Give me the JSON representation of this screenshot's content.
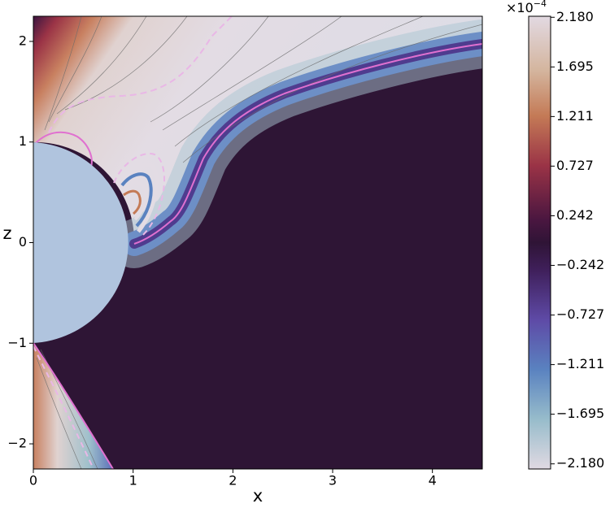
{
  "chart_data": {
    "type": "contour",
    "x_label": "x",
    "y_label": "z",
    "xlim": [
      0,
      4.5
    ],
    "ylim": [
      -2.25,
      2.25
    ],
    "xticks": [
      0,
      1,
      2,
      3,
      4
    ],
    "yticks": [
      {
        "value": -2,
        "label": "−2"
      },
      {
        "value": -1,
        "label": "−1"
      },
      0,
      1,
      2
    ],
    "colorbar": {
      "clim": [
        -2.23,
        2.19
      ],
      "multiplier": {
        "base": "×10",
        "exponent": "−4"
      },
      "ticks": [
        {
          "value": 2.18,
          "label": "2.180"
        },
        {
          "value": 1.695,
          "label": "1.695"
        },
        {
          "value": 1.211,
          "label": "1.211"
        },
        {
          "value": 0.727,
          "label": "0.727"
        },
        {
          "value": 0.242,
          "label": "0.242"
        },
        {
          "value": -0.242,
          "label": "−0.242"
        },
        {
          "value": -0.727,
          "label": "−0.727"
        },
        {
          "value": -1.211,
          "label": "−1.211"
        },
        {
          "value": -1.695,
          "label": "−1.695"
        },
        {
          "value": -2.18,
          "label": "−2.180"
        }
      ]
    }
  }
}
